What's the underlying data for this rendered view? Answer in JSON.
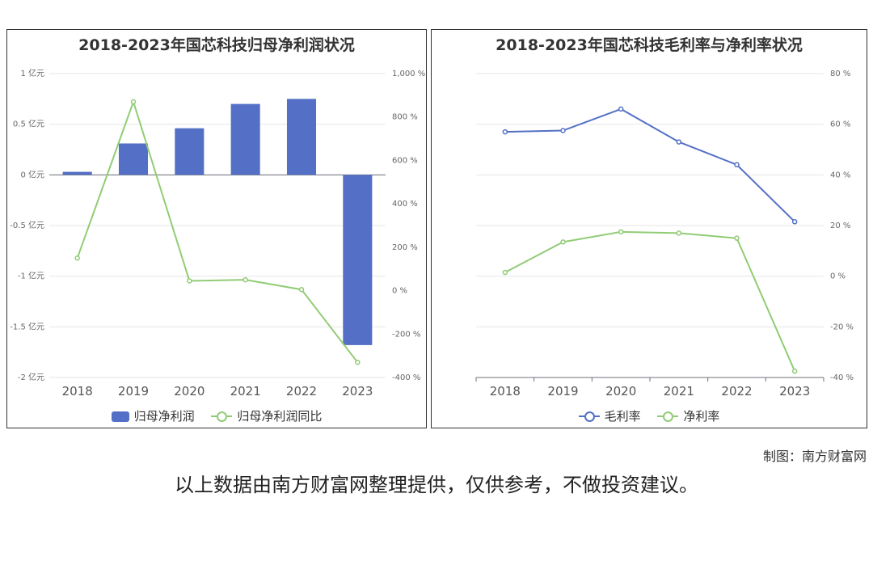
{
  "chart_data": [
    {
      "type": "bar+line",
      "title": "2018-2023年国芯科技归母净利润状况",
      "categories": [
        "2018",
        "2019",
        "2020",
        "2021",
        "2022",
        "2023"
      ],
      "series": [
        {
          "name": "归母净利润",
          "type": "bar",
          "axis": "left",
          "values": [
            0.03,
            0.31,
            0.46,
            0.7,
            0.75,
            -1.68
          ]
        },
        {
          "name": "归母净利润同比",
          "type": "line",
          "axis": "right",
          "values": [
            150,
            870,
            45,
            50,
            5,
            -330
          ]
        }
      ],
      "y_left": {
        "min": -2,
        "max": 1,
        "ticks": [
          1,
          0.5,
          0,
          -0.5,
          -1,
          -1.5,
          -2
        ],
        "tick_labels": [
          "1 亿元",
          "0.5 亿元",
          "0 亿元",
          "-0.5 亿元",
          "-1 亿元",
          "-1.5 亿元",
          "-2 亿元"
        ]
      },
      "y_right": {
        "min": -400,
        "max": 1000,
        "ticks": [
          1000,
          800,
          600,
          400,
          200,
          0,
          -200,
          -400
        ],
        "tick_labels": [
          "1,000 %",
          "800 %",
          "600 %",
          "400 %",
          "200 %",
          "0 %",
          "-200 %",
          "-400 %"
        ]
      },
      "legend_position": "bottom",
      "grid": true
    },
    {
      "type": "line",
      "title": "2018-2023年国芯科技毛利率与净利率状况",
      "categories": [
        "2018",
        "2019",
        "2020",
        "2021",
        "2022",
        "2023"
      ],
      "series": [
        {
          "name": "毛利率",
          "values": [
            57,
            57.5,
            66,
            53,
            44,
            21.5
          ]
        },
        {
          "name": "净利率",
          "values": [
            1.5,
            13.5,
            17.5,
            17,
            15,
            -37.5
          ]
        }
      ],
      "y_right": {
        "min": -40,
        "max": 80,
        "ticks": [
          80,
          60,
          40,
          20,
          0,
          -20,
          -40
        ],
        "tick_labels": [
          "80 %",
          "60 %",
          "40 %",
          "20 %",
          "0 %",
          "-20 %",
          "-40 %"
        ]
      },
      "legend_position": "bottom",
      "grid": true
    }
  ],
  "colors": {
    "bar": "#5470c6",
    "line_green": "#91cc75",
    "line_blue": "#5470c6"
  },
  "credit": "制图：南方财富网",
  "note": "以上数据由南方财富网整理提供，仅供参考，不做投资建议。"
}
